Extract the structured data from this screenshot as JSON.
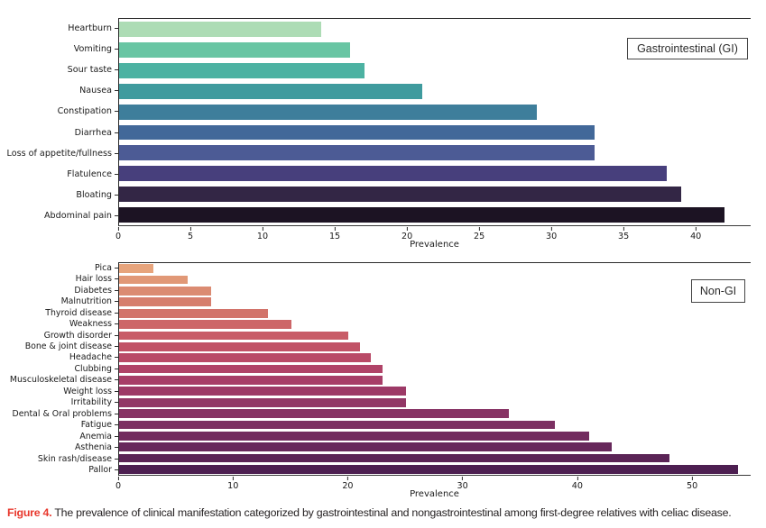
{
  "caption": {
    "label": "Figure 4.",
    "text": " The prevalence of clinical manifestation categorized by gastrointestinal and nongastrointestinal among first-degree relatives with celiac disease."
  },
  "colors": {
    "caption_label": "#e8382d",
    "axis": "#2b2b2b",
    "background": "#ffffff"
  },
  "chart_data": [
    {
      "type": "bar",
      "orientation": "horizontal",
      "legend": "Gastrointestinal (GI)",
      "xlabel": "Prevalence",
      "xlim": [
        0,
        43.8
      ],
      "xticks": [
        0,
        5,
        10,
        15,
        20,
        25,
        30,
        35,
        40
      ],
      "grid": false,
      "legend_position": "upper right",
      "categories": [
        "Heartburn",
        "Vomiting",
        "Sour taste",
        "Nausea",
        "Constipation",
        "Diarrhea",
        "Loss of appetite/fullness",
        "Flatulence",
        "Bloating",
        "Abdominal pain"
      ],
      "values": [
        14,
        16,
        17,
        21,
        29,
        33,
        33,
        38,
        39,
        42
      ],
      "bar_colors": [
        "#addcb5",
        "#68c5a3",
        "#4cb2a2",
        "#3f9b9e",
        "#3e7e9b",
        "#426899",
        "#4c5b95",
        "#473f7c",
        "#332645",
        "#1c1323"
      ]
    },
    {
      "type": "bar",
      "orientation": "horizontal",
      "legend": "Non-GI",
      "xlabel": "Prevalence",
      "xlim": [
        0,
        55.1
      ],
      "xticks": [
        0,
        10,
        20,
        30,
        40,
        50
      ],
      "grid": false,
      "legend_position": "upper right",
      "categories": [
        "Pica",
        "Hair loss",
        "Diabetes",
        "Malnutrition",
        "Thyroid disease",
        "Weakness",
        "Growth disorder",
        "Bone & joint disease",
        "Headache",
        "Clubbing",
        "Musculoskeletal disease",
        "Weight loss",
        "Irritability",
        "Dental & Oral problems",
        "Fatigue",
        "Anemia",
        "Asthenia",
        "Skin rash/disease",
        "Pallor"
      ],
      "values": [
        3,
        6,
        8,
        8,
        13,
        15,
        20,
        21,
        22,
        23,
        23,
        25,
        25,
        34,
        38,
        41,
        43,
        48,
        54
      ],
      "bar_colors": [
        "#e7a47c",
        "#e19877",
        "#db8b72",
        "#d67e6d",
        "#d2736a",
        "#cd6668",
        "#c85c67",
        "#c15266",
        "#b94a67",
        "#b04368",
        "#a73e68",
        "#9d3a67",
        "#923766",
        "#873364",
        "#7c3062",
        "#722c5f",
        "#67285b",
        "#5b2456",
        "#4d1f51"
      ]
    }
  ]
}
